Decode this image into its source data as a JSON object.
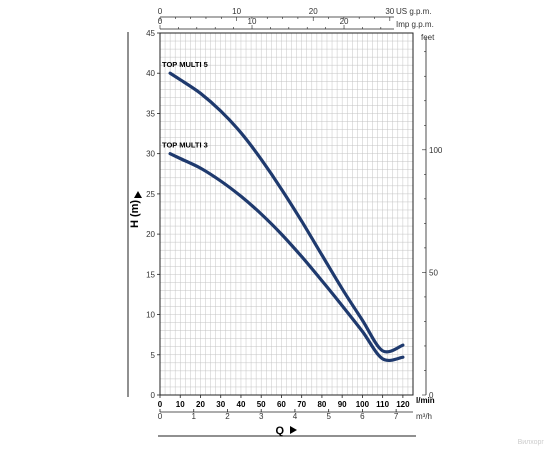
{
  "chart_data": {
    "type": "line",
    "title": "",
    "xlabel": "Q",
    "ylabel": "H (m)",
    "x_unit": "l/min",
    "x_unit_secondary": "m³/h",
    "ylim": [
      0,
      45
    ],
    "xlim": [
      0,
      125
    ],
    "grid": true,
    "legend": "labels at curve start",
    "y_ticks": [
      0,
      5,
      10,
      15,
      20,
      25,
      30,
      35,
      40,
      45
    ],
    "x_ticks": [
      0,
      10,
      20,
      30,
      40,
      50,
      60,
      70,
      80,
      90,
      100,
      110,
      120
    ],
    "m3h_ticks": [
      0,
      1,
      2,
      3,
      4,
      5,
      6,
      7
    ],
    "top_us_label": "US g.p.m.",
    "top_us_ticks": [
      0,
      10,
      20,
      30
    ],
    "top_imp_label": "Imp g.p.m.",
    "top_imp_ticks": [
      0,
      10,
      20
    ],
    "right_label": "feet",
    "right_ticks": [
      0,
      50,
      100
    ],
    "series": [
      {
        "name": "TOP MULTI 5",
        "color": "#1f3a6e",
        "x": [
          5,
          10,
          20,
          30,
          40,
          50,
          60,
          70,
          80,
          90,
          100,
          110,
          120
        ],
        "y": [
          40,
          39.2,
          37.5,
          35.3,
          32.6,
          29.3,
          25.6,
          21.6,
          17.4,
          13.2,
          9.3,
          5.5,
          6.2
        ]
      },
      {
        "name": "TOP MULTI 3",
        "color": "#1f3a6e",
        "x": [
          5,
          10,
          20,
          30,
          40,
          50,
          60,
          70,
          80,
          90,
          100,
          110,
          120
        ],
        "y": [
          30,
          29.4,
          28.2,
          26.6,
          24.7,
          22.5,
          20,
          17.2,
          14.2,
          11.1,
          7.9,
          4.5,
          4.7
        ]
      }
    ]
  },
  "watermark": "Вилхорг"
}
